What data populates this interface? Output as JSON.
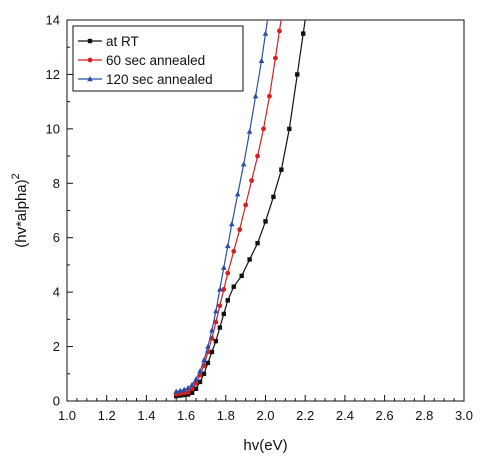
{
  "chart_data": {
    "type": "line",
    "xlabel": "hv(eV)",
    "ylabel_base": "(hv*alpha)",
    "ylabel_sup": "2",
    "xlim": [
      1.0,
      3.0
    ],
    "ylim": [
      0,
      14
    ],
    "x_ticks": [
      "1.0",
      "1.2",
      "1.4",
      "1.6",
      "1.8",
      "2.0",
      "2.2",
      "2.4",
      "2.6",
      "2.8",
      "3.0"
    ],
    "y_ticks": [
      "0",
      "2",
      "4",
      "6",
      "8",
      "10",
      "12",
      "14"
    ],
    "grid": false,
    "legend_position": "top-left",
    "series": [
      {
        "name": "at RT",
        "color": "#111111",
        "marker": "square",
        "points": [
          [
            1.55,
            0.18
          ],
          [
            1.57,
            0.2
          ],
          [
            1.59,
            0.22
          ],
          [
            1.61,
            0.24
          ],
          [
            1.63,
            0.3
          ],
          [
            1.65,
            0.45
          ],
          [
            1.67,
            0.7
          ],
          [
            1.69,
            1.0
          ],
          [
            1.71,
            1.4
          ],
          [
            1.73,
            1.8
          ],
          [
            1.75,
            2.2
          ],
          [
            1.77,
            2.7
          ],
          [
            1.79,
            3.2
          ],
          [
            1.81,
            3.7
          ],
          [
            1.84,
            4.2
          ],
          [
            1.88,
            4.6
          ],
          [
            1.92,
            5.2
          ],
          [
            1.96,
            5.8
          ],
          [
            2.0,
            6.6
          ],
          [
            2.04,
            7.5
          ],
          [
            2.08,
            8.5
          ],
          [
            2.12,
            10.0
          ],
          [
            2.16,
            12.0
          ],
          [
            2.19,
            13.5
          ],
          [
            2.21,
            14.5
          ]
        ]
      },
      {
        "name": "60 sec annealed",
        "color": "#d42020",
        "marker": "circle",
        "points": [
          [
            1.55,
            0.25
          ],
          [
            1.57,
            0.27
          ],
          [
            1.59,
            0.29
          ],
          [
            1.61,
            0.32
          ],
          [
            1.63,
            0.45
          ],
          [
            1.65,
            0.65
          ],
          [
            1.67,
            0.95
          ],
          [
            1.69,
            1.3
          ],
          [
            1.71,
            1.8
          ],
          [
            1.73,
            2.3
          ],
          [
            1.75,
            2.9
          ],
          [
            1.77,
            3.5
          ],
          [
            1.79,
            4.1
          ],
          [
            1.81,
            4.7
          ],
          [
            1.84,
            5.5
          ],
          [
            1.87,
            6.3
          ],
          [
            1.9,
            7.2
          ],
          [
            1.93,
            8.1
          ],
          [
            1.96,
            9.0
          ],
          [
            1.99,
            10.0
          ],
          [
            2.02,
            11.2
          ],
          [
            2.05,
            12.6
          ],
          [
            2.07,
            13.6
          ],
          [
            2.09,
            14.5
          ]
        ]
      },
      {
        "name": "120 sec annealed",
        "color": "#2a4fa8",
        "marker": "triangle",
        "points": [
          [
            1.55,
            0.35
          ],
          [
            1.57,
            0.38
          ],
          [
            1.59,
            0.42
          ],
          [
            1.61,
            0.48
          ],
          [
            1.63,
            0.6
          ],
          [
            1.65,
            0.8
          ],
          [
            1.67,
            1.1
          ],
          [
            1.69,
            1.5
          ],
          [
            1.71,
            2.0
          ],
          [
            1.73,
            2.6
          ],
          [
            1.75,
            3.3
          ],
          [
            1.77,
            4.1
          ],
          [
            1.79,
            4.9
          ],
          [
            1.81,
            5.7
          ],
          [
            1.83,
            6.5
          ],
          [
            1.86,
            7.6
          ],
          [
            1.89,
            8.7
          ],
          [
            1.92,
            9.9
          ],
          [
            1.95,
            11.2
          ],
          [
            1.98,
            12.5
          ],
          [
            2.0,
            13.5
          ],
          [
            2.02,
            14.5
          ]
        ]
      }
    ]
  }
}
